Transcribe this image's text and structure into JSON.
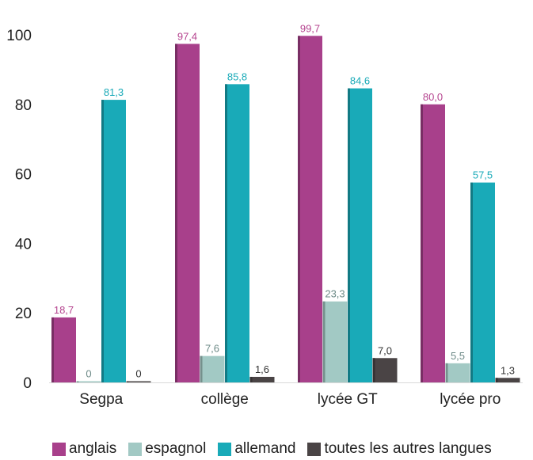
{
  "chart_data": {
    "type": "bar",
    "categories": [
      "Segpa",
      "collège",
      "lycée GT",
      "lycée pro"
    ],
    "series": [
      {
        "name": "anglais",
        "values": [
          18.7,
          97.4,
          99.7,
          80.0
        ],
        "labels": [
          "18,7",
          "97,4",
          "99,7",
          "80,0"
        ],
        "color": "#a8408b",
        "label_color": "#b5448f"
      },
      {
        "name": "espagnol",
        "values": [
          0,
          7.6,
          23.3,
          5.5
        ],
        "labels": [
          "0",
          "7,6",
          "23,3",
          "5,5"
        ],
        "color": "#a2c9c4",
        "label_color": "#6d8a87"
      },
      {
        "name": "allemand",
        "values": [
          81.3,
          85.8,
          84.6,
          57.5
        ],
        "labels": [
          "81,3",
          "85,8",
          "84,6",
          "57,5"
        ],
        "color": "#19aab8",
        "label_color": "#19aab8"
      },
      {
        "name": "toutes les autres langues",
        "values": [
          0,
          1.6,
          7.0,
          1.3
        ],
        "labels": [
          "0",
          "1,6",
          "7,0",
          "1,3"
        ],
        "color": "#4a4445",
        "label_color": "#333333"
      }
    ],
    "yticks": [
      "0",
      "20",
      "40",
      "60",
      "80",
      "100"
    ],
    "ylim": [
      0,
      100
    ],
    "grid": false,
    "legend_position": "bottom",
    "title": "",
    "xlabel": "",
    "ylabel": ""
  }
}
